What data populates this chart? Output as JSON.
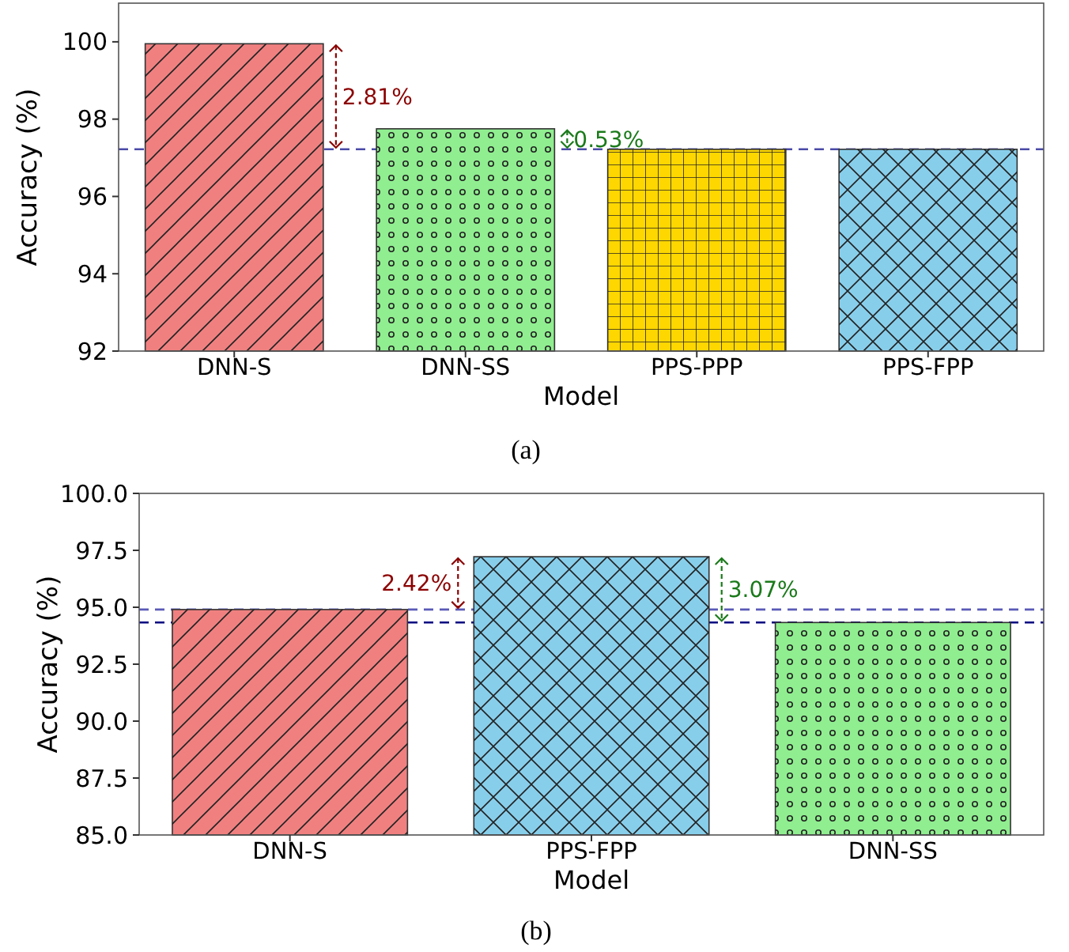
{
  "chart_data": [
    {
      "type": "bar",
      "xlabel": "Model",
      "ylabel": "Accuracy (%)",
      "categories": [
        "DNN-S",
        "DNN-SS",
        "PPS-PPP",
        "PPS-FPP"
      ],
      "values": [
        99.95,
        97.75,
        97.22,
        97.22
      ],
      "colors": [
        "#f08080",
        "#90ee90",
        "#ffd700",
        "#87ceeb"
      ],
      "ylim": [
        92,
        101
      ],
      "yticks": [
        92,
        94,
        96,
        98,
        100
      ],
      "grid": false,
      "ref_lines": [
        {
          "axis": "y",
          "value": 97.22,
          "color": "#4a4aa8",
          "line_style": "dashed"
        }
      ],
      "annotations": [
        "2.81%",
        "0.53%",
        "(a)"
      ]
    },
    {
      "type": "bar",
      "xlabel": "Model",
      "ylabel": "Accuracy (%)",
      "categories": [
        "DNN-S",
        "PPS-FPP",
        "DNN-SS"
      ],
      "values": [
        94.9,
        97.22,
        94.33
      ],
      "colors": [
        "#f08080",
        "#87ceeb",
        "#90ee90"
      ],
      "ylim": [
        85,
        100
      ],
      "yticks": [
        {
          "value": 85,
          "label": "85.0"
        },
        {
          "value": 87.5,
          "label": "87.5"
        },
        {
          "value": 90,
          "label": "90.0"
        },
        {
          "value": 92.5,
          "label": "92.5"
        },
        {
          "value": 95,
          "label": "95.0"
        },
        {
          "value": 97.5,
          "label": "97.5"
        },
        {
          "value": 100,
          "label": "100.0"
        }
      ],
      "grid": false,
      "ref_lines": [
        {
          "axis": "y",
          "value": 94.9,
          "color": "#5a5ab8",
          "line_style": "dashed"
        },
        {
          "axis": "y",
          "value": 94.33,
          "color": "#000080",
          "line_style": "dashed"
        }
      ],
      "annotations": [
        "2.42%",
        "3.07%",
        "(b)"
      ]
    }
  ]
}
